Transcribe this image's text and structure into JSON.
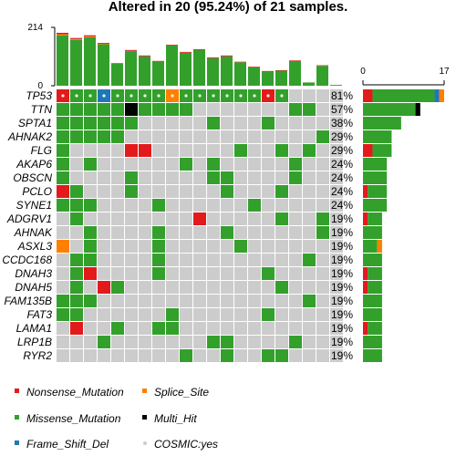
{
  "chart_data": {
    "type": "heatmap",
    "title": "Altered in 20 (95.24%) of 21 samples.",
    "sample_count": 21,
    "top_bar": {
      "ylim": [
        0,
        214
      ],
      "ticks": [
        "0",
        "214"
      ]
    },
    "side_bar": {
      "xlim": [
        0,
        17
      ],
      "ticks": [
        "0",
        "17"
      ]
    },
    "colors": {
      "Nonsense_Mutation": "#e31a1c",
      "Splice_Site": "#ff7f00",
      "Missense_Mutation": "#33a02c",
      "Multi_Hit": "#000000",
      "Frame_Shift_Del": "#1f78b4",
      "none": "#cccccc",
      "cosmic": "#cccccc"
    },
    "legend": [
      {
        "label": "Nonsense_Mutation",
        "key": "Nonsense_Mutation",
        "kind": "square"
      },
      {
        "label": "Splice_Site",
        "key": "Splice_Site",
        "kind": "square"
      },
      {
        "label": "Missense_Mutation",
        "key": "Missense_Mutation",
        "kind": "square"
      },
      {
        "label": "Multi_Hit",
        "key": "Multi_Hit",
        "kind": "square"
      },
      {
        "label": "Frame_Shift_Del",
        "key": "Frame_Shift_Del",
        "kind": "square"
      },
      {
        "label": "COSMIC:yes",
        "key": "cosmic",
        "kind": "dot"
      }
    ],
    "sample_totals": [
      {
        "Missense_Mutation": 185,
        "Nonsense_Mutation": 5,
        "Splice_Site": 4
      },
      {
        "Missense_Mutation": 168,
        "Nonsense_Mutation": 4,
        "Splice_Site": 3
      },
      {
        "Missense_Mutation": 178,
        "Nonsense_Mutation": 4,
        "Splice_Site": 3
      },
      {
        "Missense_Mutation": 152,
        "Nonsense_Mutation": 3,
        "Splice_Site": 2
      },
      {
        "Missense_Mutation": 81,
        "Nonsense_Mutation": 2
      },
      {
        "Missense_Mutation": 126,
        "Nonsense_Mutation": 3,
        "Frame_Shift_Del": 2
      },
      {
        "Missense_Mutation": 108,
        "Nonsense_Mutation": 3
      },
      {
        "Missense_Mutation": 89,
        "Nonsense_Mutation": 2
      },
      {
        "Missense_Mutation": 147,
        "Nonsense_Mutation": 3
      },
      {
        "Missense_Mutation": 121,
        "Nonsense_Mutation": 3
      },
      {
        "Missense_Mutation": 131,
        "Nonsense_Mutation": 3
      },
      {
        "Missense_Mutation": 101,
        "Nonsense_Mutation": 3
      },
      {
        "Missense_Mutation": 108,
        "Nonsense_Mutation": 3
      },
      {
        "Missense_Mutation": 86,
        "Nonsense_Mutation": 2
      },
      {
        "Missense_Mutation": 68,
        "Nonsense_Mutation": 2
      },
      {
        "Missense_Mutation": 52,
        "Nonsense_Mutation": 2
      },
      {
        "Missense_Mutation": 55,
        "Nonsense_Mutation": 2
      },
      {
        "Missense_Mutation": 91,
        "Nonsense_Mutation": 2
      },
      {
        "Missense_Mutation": 12
      },
      {
        "Missense_Mutation": 73,
        "Nonsense_Mutation": 2
      },
      {
        "Missense_Mutation": 3
      }
    ],
    "genes": [
      {
        "name": "TP53",
        "pct": "81%",
        "counts": {
          "Nonsense_Mutation": 2,
          "Missense_Mutation": 13,
          "Splice_Site": 1,
          "Frame_Shift_Del": 1
        },
        "cells": {
          "0": "Nonsense_Mutation",
          "1": "Missense_Mutation",
          "2": "Missense_Mutation",
          "3": "Frame_Shift_Del",
          "4": "Missense_Mutation",
          "5": "Missense_Mutation",
          "6": "Missense_Mutation",
          "7": "Missense_Mutation",
          "8": "Splice_Site",
          "9": "Missense_Mutation",
          "10": "Missense_Mutation",
          "11": "Missense_Mutation",
          "12": "Missense_Mutation",
          "13": "Missense_Mutation",
          "14": "Missense_Mutation",
          "15": "Nonsense_Mutation",
          "16": "Missense_Mutation"
        },
        "cosmic": [
          0,
          1,
          2,
          3,
          4,
          5,
          6,
          7,
          8,
          9,
          10,
          11,
          12,
          13,
          14,
          15,
          16
        ]
      },
      {
        "name": "TTN",
        "pct": "57%",
        "counts": {
          "Missense_Mutation": 11,
          "Multi_Hit": 1
        },
        "cells": {
          "0": "Missense_Mutation",
          "1": "Missense_Mutation",
          "2": "Missense_Mutation",
          "3": "Missense_Mutation",
          "4": "Missense_Mutation",
          "5": "Multi_Hit",
          "6": "Missense_Mutation",
          "7": "Missense_Mutation",
          "8": "Missense_Mutation",
          "9": "Missense_Mutation",
          "17": "Missense_Mutation",
          "18": "Missense_Mutation"
        }
      },
      {
        "name": "SPTA1",
        "pct": "38%",
        "counts": {
          "Missense_Mutation": 8
        },
        "cells": {
          "0": "Missense_Mutation",
          "1": "Missense_Mutation",
          "2": "Missense_Mutation",
          "3": "Missense_Mutation",
          "4": "Missense_Mutation",
          "5": "Missense_Mutation",
          "11": "Missense_Mutation",
          "15": "Missense_Mutation"
        }
      },
      {
        "name": "AHNAK2",
        "pct": "29%",
        "counts": {
          "Missense_Mutation": 6
        },
        "cells": {
          "0": "Missense_Mutation",
          "1": "Missense_Mutation",
          "2": "Missense_Mutation",
          "3": "Missense_Mutation",
          "4": "Missense_Mutation",
          "19": "Missense_Mutation"
        }
      },
      {
        "name": "FLG",
        "pct": "29%",
        "counts": {
          "Nonsense_Mutation": 2,
          "Missense_Mutation": 4
        },
        "cells": {
          "0": "Missense_Mutation",
          "5": "Nonsense_Mutation",
          "6": "Nonsense_Mutation",
          "13": "Missense_Mutation",
          "16": "Missense_Mutation",
          "18": "Missense_Mutation"
        }
      },
      {
        "name": "AKAP6",
        "pct": "24%",
        "counts": {
          "Missense_Mutation": 5
        },
        "cells": {
          "0": "Missense_Mutation",
          "2": "Missense_Mutation",
          "9": "Missense_Mutation",
          "11": "Missense_Mutation",
          "17": "Missense_Mutation"
        }
      },
      {
        "name": "OBSCN",
        "pct": "24%",
        "counts": {
          "Missense_Mutation": 5
        },
        "cells": {
          "0": "Missense_Mutation",
          "5": "Missense_Mutation",
          "11": "Missense_Mutation",
          "12": "Missense_Mutation",
          "17": "Missense_Mutation"
        }
      },
      {
        "name": "PCLO",
        "pct": "24%",
        "counts": {
          "Nonsense_Mutation": 1,
          "Missense_Mutation": 4
        },
        "cells": {
          "0": "Nonsense_Mutation",
          "1": "Missense_Mutation",
          "5": "Missense_Mutation",
          "12": "Missense_Mutation",
          "16": "Missense_Mutation"
        }
      },
      {
        "name": "SYNE1",
        "pct": "24%",
        "counts": {
          "Missense_Mutation": 5
        },
        "cells": {
          "0": "Missense_Mutation",
          "1": "Missense_Mutation",
          "2": "Missense_Mutation",
          "7": "Missense_Mutation",
          "14": "Missense_Mutation"
        }
      },
      {
        "name": "ADGRV1",
        "pct": "19%",
        "counts": {
          "Nonsense_Mutation": 1,
          "Missense_Mutation": 3
        },
        "cells": {
          "1": "Missense_Mutation",
          "10": "Nonsense_Mutation",
          "16": "Missense_Mutation",
          "19": "Missense_Mutation"
        }
      },
      {
        "name": "AHNAK",
        "pct": "19%",
        "counts": {
          "Missense_Mutation": 4
        },
        "cells": {
          "2": "Missense_Mutation",
          "7": "Missense_Mutation",
          "12": "Missense_Mutation",
          "19": "Missense_Mutation"
        }
      },
      {
        "name": "ASXL3",
        "pct": "19%",
        "counts": {
          "Missense_Mutation": 3,
          "Splice_Site": 1
        },
        "cells": {
          "0": "Splice_Site",
          "2": "Missense_Mutation",
          "7": "Missense_Mutation",
          "13": "Missense_Mutation"
        }
      },
      {
        "name": "CCDC168",
        "pct": "19%",
        "counts": {
          "Missense_Mutation": 4
        },
        "cells": {
          "1": "Missense_Mutation",
          "2": "Missense_Mutation",
          "7": "Missense_Mutation",
          "18": "Missense_Mutation"
        }
      },
      {
        "name": "DNAH3",
        "pct": "19%",
        "counts": {
          "Nonsense_Mutation": 1,
          "Missense_Mutation": 3
        },
        "cells": {
          "1": "Missense_Mutation",
          "2": "Nonsense_Mutation",
          "7": "Missense_Mutation",
          "15": "Missense_Mutation"
        }
      },
      {
        "name": "DNAH5",
        "pct": "19%",
        "counts": {
          "Nonsense_Mutation": 1,
          "Missense_Mutation": 3
        },
        "cells": {
          "1": "Missense_Mutation",
          "3": "Nonsense_Mutation",
          "4": "Missense_Mutation",
          "16": "Missense_Mutation"
        }
      },
      {
        "name": "FAM135B",
        "pct": "19%",
        "counts": {
          "Missense_Mutation": 4
        },
        "cells": {
          "0": "Missense_Mutation",
          "1": "Missense_Mutation",
          "2": "Missense_Mutation",
          "18": "Missense_Mutation"
        }
      },
      {
        "name": "FAT3",
        "pct": "19%",
        "counts": {
          "Missense_Mutation": 4
        },
        "cells": {
          "0": "Missense_Mutation",
          "1": "Missense_Mutation",
          "8": "Missense_Mutation",
          "15": "Missense_Mutation"
        }
      },
      {
        "name": "LAMA1",
        "pct": "19%",
        "counts": {
          "Nonsense_Mutation": 1,
          "Missense_Mutation": 3
        },
        "cells": {
          "1": "Nonsense_Mutation",
          "4": "Missense_Mutation",
          "7": "Missense_Mutation",
          "8": "Missense_Mutation"
        }
      },
      {
        "name": "LRP1B",
        "pct": "19%",
        "counts": {
          "Missense_Mutation": 4
        },
        "cells": {
          "3": "Missense_Mutation",
          "11": "Missense_Mutation",
          "12": "Missense_Mutation",
          "17": "Missense_Mutation"
        }
      },
      {
        "name": "RYR2",
        "pct": "19%",
        "counts": {
          "Missense_Mutation": 4
        },
        "cells": {
          "9": "Missense_Mutation",
          "12": "Missense_Mutation",
          "15": "Missense_Mutation",
          "16": "Missense_Mutation"
        }
      }
    ]
  }
}
